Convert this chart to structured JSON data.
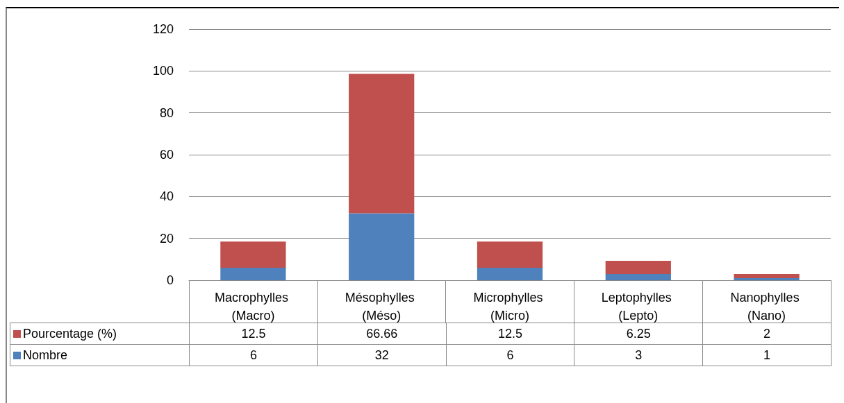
{
  "chart_data": {
    "type": "bar",
    "stacked": true,
    "categories": [
      "Macrophylles (Macro)",
      "Mésophylles (Méso)",
      "Microphylles (Micro)",
      "Leptophylles (Lepto)",
      "Nanophylles (Nano)"
    ],
    "series": [
      {
        "name": "Nombre",
        "color": "#4f81bd",
        "values": [
          6,
          32,
          6,
          3,
          1
        ]
      },
      {
        "name": "Pourcentage (%)",
        "color": "#c0504d",
        "values": [
          12.5,
          66.66,
          12.5,
          6.25,
          2
        ]
      }
    ],
    "ylim": [
      0,
      120
    ],
    "yticks": [
      0,
      20,
      40,
      60,
      80,
      100,
      120
    ],
    "grid": "y",
    "legend": "bottom",
    "data_labels": true
  }
}
